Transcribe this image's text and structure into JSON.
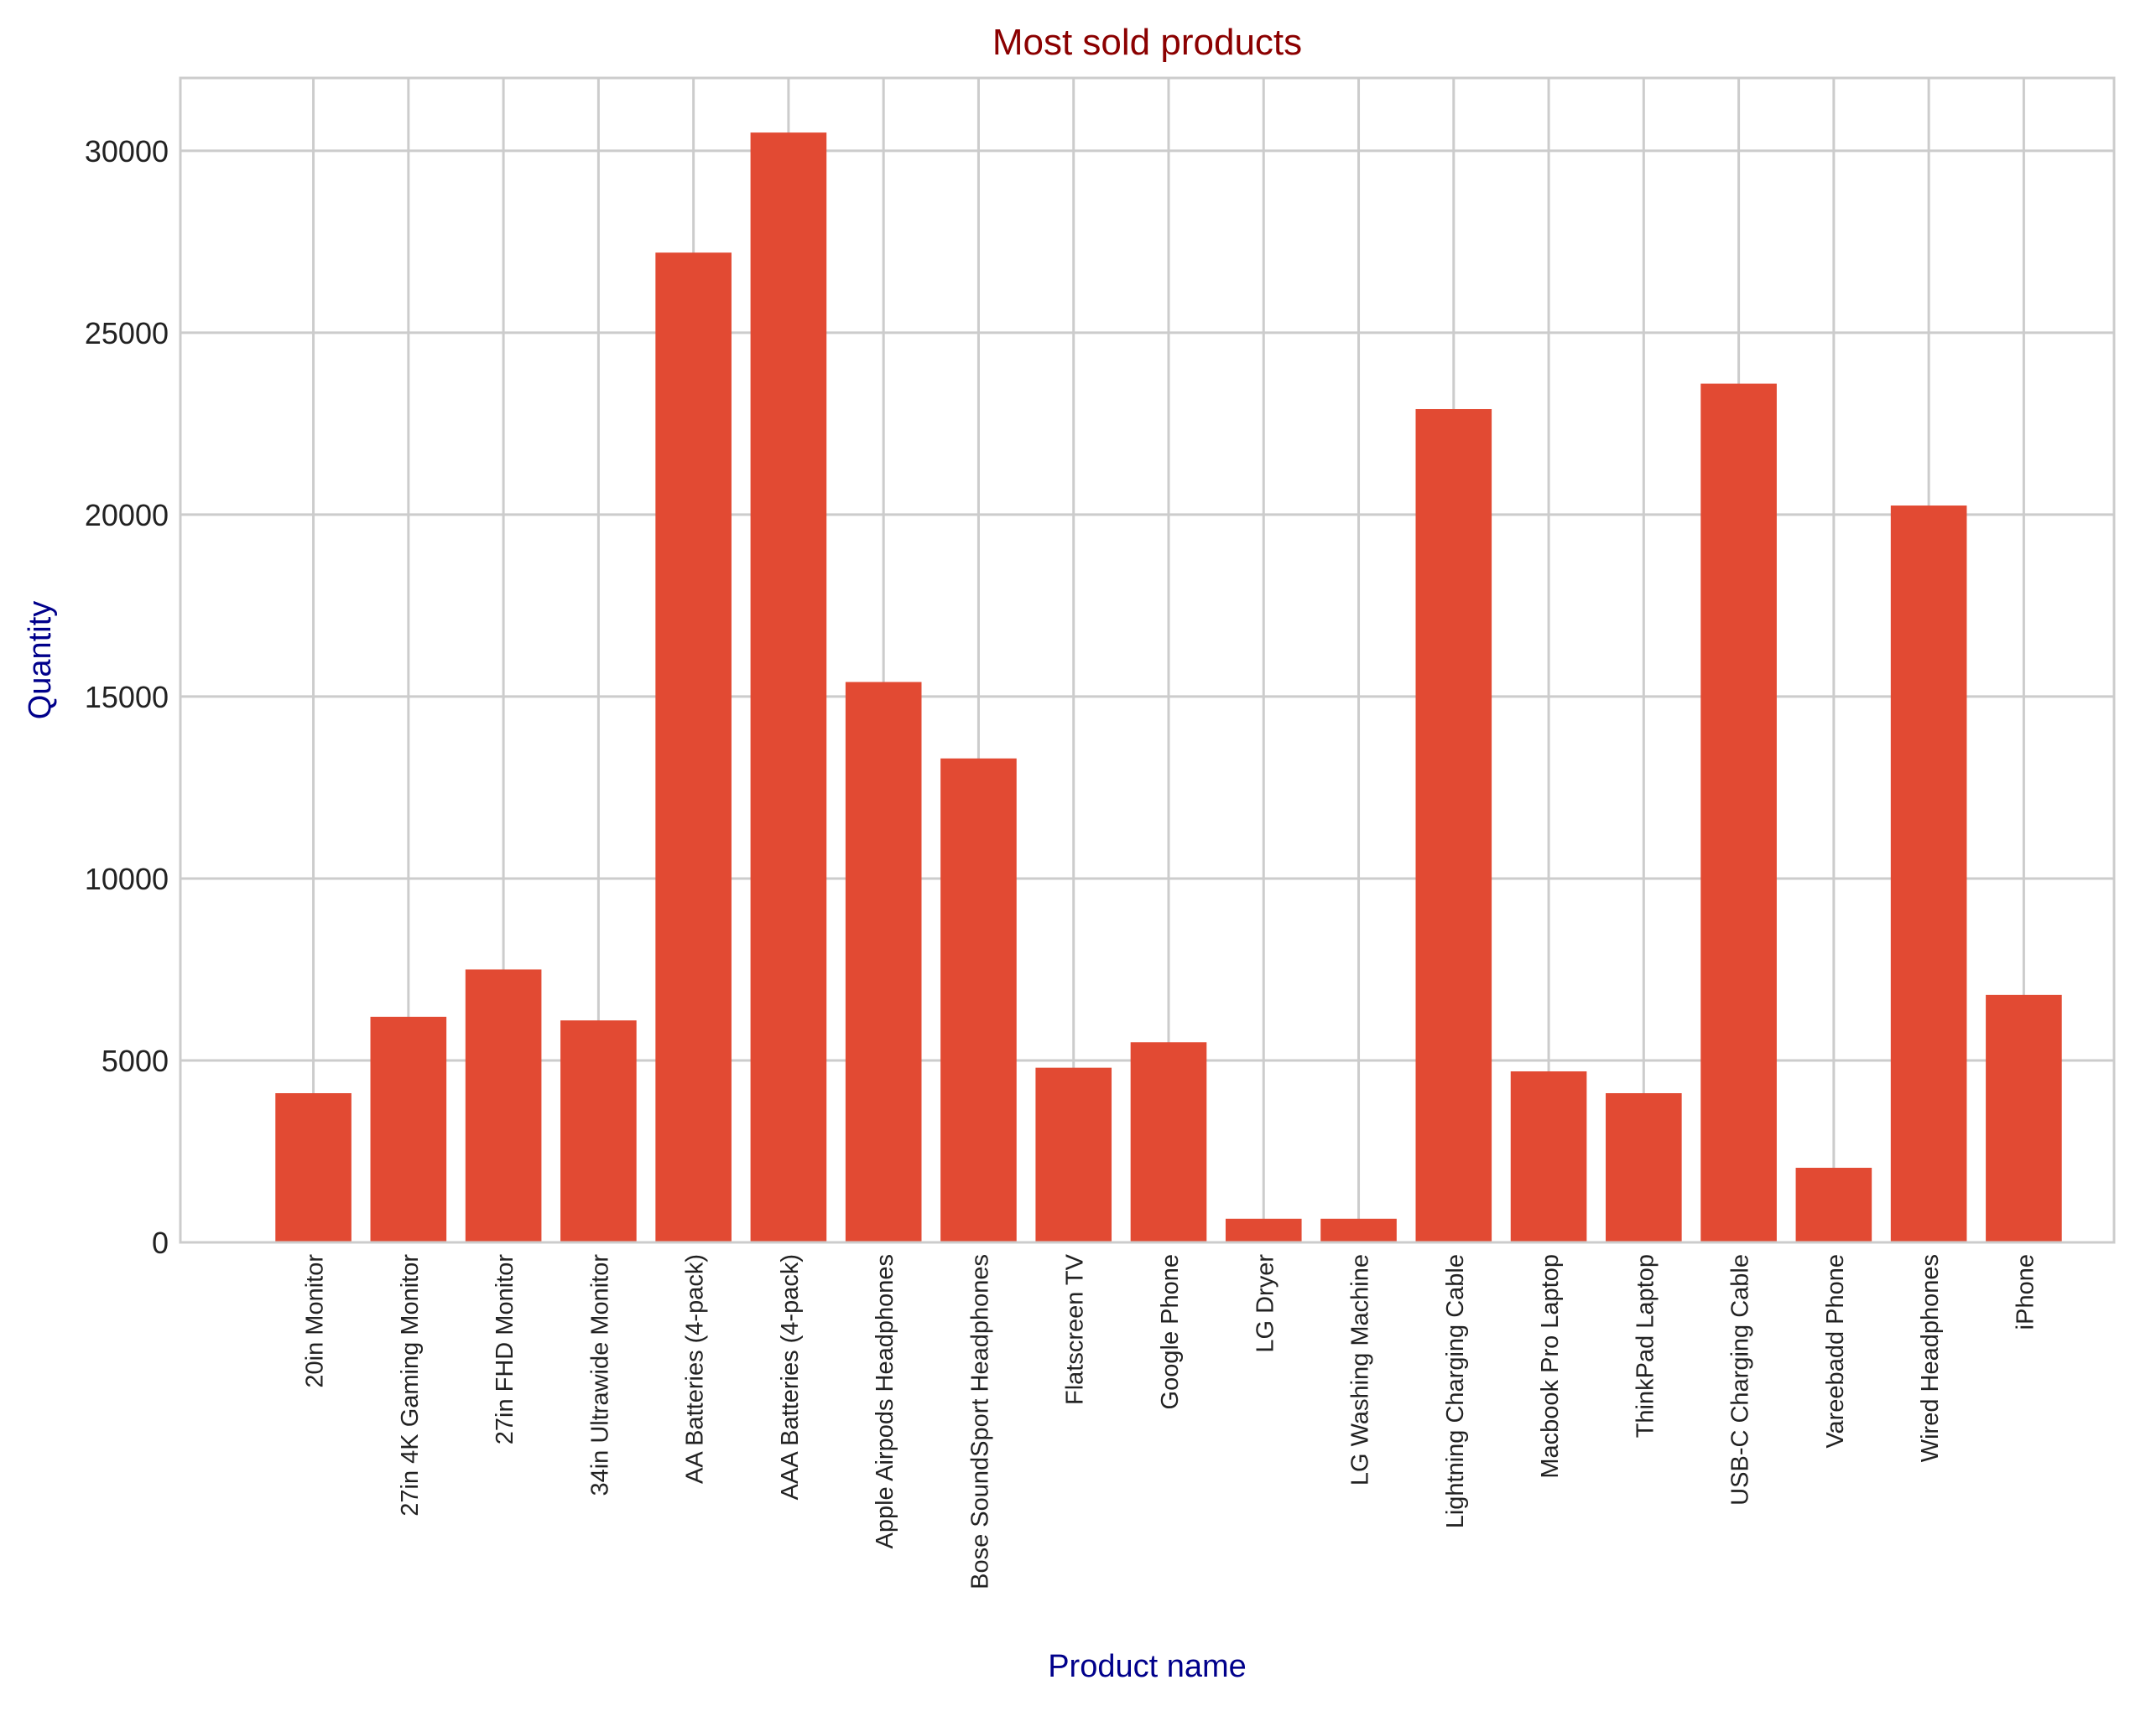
{
  "chart_data": {
    "type": "bar",
    "title": "Most sold products",
    "xlabel": "Product name",
    "ylabel": "Quantity",
    "categories": [
      "20in Monitor",
      "27in 4K Gaming Monitor",
      "27in FHD Monitor",
      "34in Ultrawide Monitor",
      "AA Batteries (4-pack)",
      "AAA Batteries (4-pack)",
      "Apple Airpods Headphones",
      "Bose SoundSport Headphones",
      "Flatscreen TV",
      "Google Phone",
      "LG Dryer",
      "LG Washing Machine",
      "Lightning Charging Cable",
      "Macbook Pro Laptop",
      "ThinkPad Laptop",
      "USB-C Charging Cable",
      "Vareebadd Phone",
      "Wired Headphones",
      "iPhone"
    ],
    "values": [
      4100,
      6200,
      7500,
      6100,
      27200,
      30500,
      15400,
      13300,
      4800,
      5500,
      650,
      650,
      22900,
      4700,
      4100,
      23600,
      2050,
      20250,
      6800
    ],
    "ylim": [
      0,
      32000
    ],
    "yticks": [
      0,
      5000,
      10000,
      15000,
      20000,
      25000,
      30000
    ],
    "grid": true,
    "colors": {
      "bar": "#e24a33",
      "title": "#8b0000",
      "axis_label": "#00008b",
      "grid": "#cccccc",
      "tick_text": "#222222"
    }
  }
}
